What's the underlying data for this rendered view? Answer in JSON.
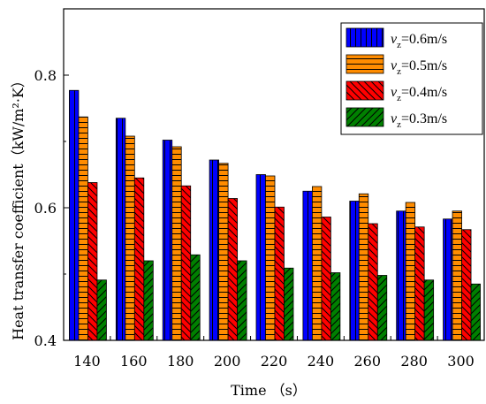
{
  "chart_data": {
    "type": "bar",
    "xlabel": "Time （s）",
    "ylabel": "Heat transfer coefficient（kW/m²·K）",
    "ylim": [
      0.4,
      0.9
    ],
    "yticks": [
      "0.4",
      "0.6",
      "0.8"
    ],
    "categories": [
      "140",
      "160",
      "180",
      "200",
      "220",
      "240",
      "260",
      "280",
      "300"
    ],
    "legend_position": "top-right",
    "grid": false,
    "series": [
      {
        "legend": {
          "var": "v",
          "sub": "z",
          "rest": "=0.6m/s"
        },
        "color": "#0000ff",
        "pattern": "vertical-lines",
        "values": [
          0.777,
          0.735,
          0.702,
          0.672,
          0.65,
          0.625,
          0.61,
          0.595,
          0.583
        ]
      },
      {
        "legend": {
          "var": "v",
          "sub": "z",
          "rest": "=0.5m/s"
        },
        "color": "#ff8c00",
        "pattern": "horizontal-lines",
        "values": [
          0.737,
          0.708,
          0.692,
          0.667,
          0.648,
          0.632,
          0.621,
          0.608,
          0.595
        ]
      },
      {
        "legend": {
          "var": "v",
          "sub": "z",
          "rest": "=0.4m/s"
        },
        "color": "#ff0000",
        "pattern": "backslash-lines",
        "values": [
          0.638,
          0.645,
          0.633,
          0.614,
          0.601,
          0.586,
          0.576,
          0.571,
          0.567
        ]
      },
      {
        "legend": {
          "var": "v",
          "sub": "z",
          "rest": "=0.3m/s"
        },
        "color": "#008000",
        "pattern": "slash-lines",
        "values": [
          0.491,
          0.52,
          0.529,
          0.52,
          0.509,
          0.502,
          0.498,
          0.491,
          0.485
        ]
      }
    ]
  }
}
